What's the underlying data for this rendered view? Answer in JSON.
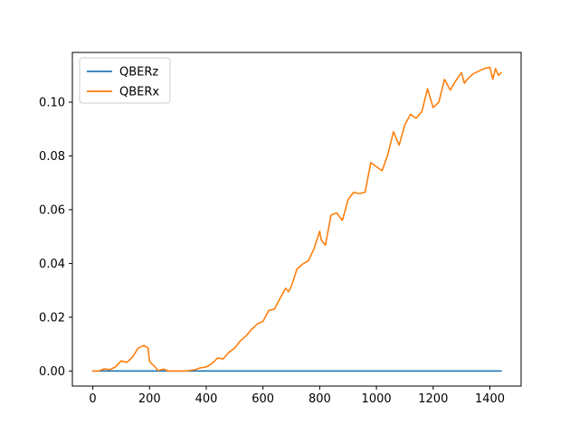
{
  "chart_data": {
    "type": "line",
    "title": "",
    "xlabel": "",
    "ylabel": "",
    "xlim": [
      -72,
      1510
    ],
    "ylim": [
      -0.0056,
      0.1185
    ],
    "xticks": [
      0,
      200,
      400,
      600,
      800,
      1000,
      1200,
      1400
    ],
    "xtick_labels": [
      "0",
      "200",
      "400",
      "600",
      "800",
      "1000",
      "1200",
      "1400"
    ],
    "yticks": [
      0.0,
      0.02,
      0.04,
      0.06,
      0.08,
      0.1
    ],
    "ytick_labels": [
      "0.00",
      "0.02",
      "0.04",
      "0.06",
      "0.08",
      "0.10"
    ],
    "grid": false,
    "legend": {
      "position": "top-left",
      "entries": [
        "QBERz",
        "QBERx"
      ]
    },
    "series": [
      {
        "name": "QBERz",
        "color": "#1f77b4",
        "x": [
          0,
          1440
        ],
        "y": [
          0.0,
          0.0
        ]
      },
      {
        "name": "QBERx",
        "color": "#ff7f0e",
        "x": [
          0,
          20,
          40,
          60,
          80,
          100,
          120,
          140,
          160,
          180,
          195,
          200,
          215,
          230,
          250,
          265,
          280,
          300,
          330,
          360,
          380,
          400,
          420,
          440,
          460,
          480,
          500,
          520,
          540,
          560,
          580,
          600,
          620,
          640,
          660,
          680,
          690,
          700,
          720,
          740,
          760,
          780,
          800,
          805,
          820,
          840,
          860,
          880,
          900,
          920,
          940,
          960,
          980,
          1000,
          1020,
          1040,
          1060,
          1080,
          1100,
          1120,
          1140,
          1160,
          1180,
          1200,
          1220,
          1240,
          1260,
          1280,
          1300,
          1310,
          1320,
          1340,
          1360,
          1380,
          1400,
          1410,
          1420,
          1430,
          1440
        ],
        "y": [
          0.0,
          0.0,
          0.0008,
          0.0005,
          0.0015,
          0.0038,
          0.0032,
          0.0052,
          0.0085,
          0.0095,
          0.0085,
          0.0035,
          0.002,
          0.0002,
          0.0007,
          0.0,
          0.0,
          0.0,
          0.0,
          0.0005,
          0.0012,
          0.0015,
          0.0028,
          0.0048,
          0.0045,
          0.007,
          0.0085,
          0.0112,
          0.013,
          0.0155,
          0.0175,
          0.0185,
          0.0225,
          0.023,
          0.027,
          0.0308,
          0.0295,
          0.0315,
          0.038,
          0.0398,
          0.041,
          0.0455,
          0.052,
          0.0488,
          0.0468,
          0.058,
          0.0588,
          0.056,
          0.0638,
          0.0665,
          0.066,
          0.0665,
          0.0775,
          0.076,
          0.0745,
          0.0805,
          0.089,
          0.084,
          0.0915,
          0.0955,
          0.094,
          0.0965,
          0.105,
          0.098,
          0.1,
          0.1085,
          0.1045,
          0.108,
          0.111,
          0.107,
          0.1085,
          0.1105,
          0.1115,
          0.1125,
          0.113,
          0.1085,
          0.1125,
          0.11,
          0.111
        ]
      }
    ]
  }
}
